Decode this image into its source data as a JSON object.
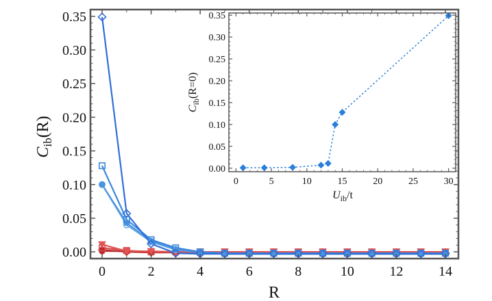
{
  "chart_data": [
    {
      "type": "line",
      "title": "",
      "xlabel": "R",
      "ylabel_main": "C",
      "ylabel_sub": "ib",
      "ylabel_tail": "(R)",
      "xlim": [
        0,
        14
      ],
      "ylim": [
        -0.01,
        0.36
      ],
      "xticks": [
        0,
        2,
        4,
        6,
        8,
        10,
        12,
        14
      ],
      "yticks": [
        0.0,
        0.05,
        0.1,
        0.15,
        0.2,
        0.25,
        0.3,
        0.35
      ],
      "xtick_labels": [
        "0",
        "2",
        "4",
        "6",
        "8",
        "10",
        "12",
        "14"
      ],
      "ytick_labels": [
        "0.00",
        "0.05",
        "0.10",
        "0.15",
        "0.20",
        "0.25",
        "0.30",
        "0.35"
      ],
      "grid": false,
      "x": [
        0,
        1,
        2,
        3,
        4,
        5,
        6,
        7,
        8,
        9,
        10,
        11,
        12,
        13,
        14
      ],
      "series": [
        {
          "name": "red-circle",
          "color": "#cc3333",
          "marker": "circle",
          "values": [
            0.001,
            0.001,
            0.0,
            -0.001,
            -0.001,
            -0.001,
            -0.001,
            -0.001,
            -0.001,
            -0.001,
            -0.001,
            -0.001,
            -0.001,
            -0.001,
            -0.001
          ]
        },
        {
          "name": "red-diamond",
          "color": "#b82828",
          "marker": "diamond",
          "values": [
            0.003,
            0.0,
            -0.001,
            -0.001,
            -0.001,
            -0.001,
            -0.001,
            -0.001,
            -0.001,
            -0.001,
            -0.001,
            -0.001,
            -0.001,
            -0.001,
            -0.001
          ]
        },
        {
          "name": "red-square",
          "color": "#d94a4a",
          "marker": "square",
          "values": [
            0.006,
            0.002,
            0.0,
            0.0,
            0.0,
            0.0,
            0.0,
            0.0,
            0.0,
            0.0,
            0.0,
            0.0,
            0.0,
            0.0,
            0.0
          ]
        },
        {
          "name": "red-triangle",
          "color": "#e05555",
          "marker": "triangle-down",
          "values": [
            0.011,
            0.001,
            0.001,
            0.0,
            0.0,
            0.0,
            0.0,
            0.0,
            0.0,
            0.0,
            0.0,
            0.0,
            0.0,
            0.0,
            0.0
          ]
        },
        {
          "name": "light-blue-circle",
          "color": "#6aaee8",
          "marker": "circle",
          "values": [
            0.1,
            0.04,
            0.015,
            0.003,
            -0.001,
            -0.003,
            -0.003,
            -0.003,
            -0.003,
            -0.003,
            -0.003,
            -0.003,
            -0.003,
            -0.003,
            -0.003
          ]
        },
        {
          "name": "mid-blue-circle",
          "color": "#4c93e0",
          "marker": "circle",
          "values": [
            0.1,
            0.043,
            0.016,
            0.004,
            -0.001,
            -0.003,
            -0.003,
            -0.003,
            -0.003,
            -0.003,
            -0.003,
            -0.003,
            -0.003,
            -0.003,
            -0.003
          ]
        },
        {
          "name": "blue-square",
          "color": "#3a86dc",
          "marker": "square",
          "values": [
            0.128,
            0.048,
            0.018,
            0.006,
            0.0,
            -0.002,
            -0.002,
            -0.002,
            -0.002,
            -0.002,
            -0.002,
            -0.002,
            -0.002,
            -0.002,
            -0.002
          ]
        },
        {
          "name": "dark-blue-diamond",
          "color": "#2f6fd6",
          "marker": "diamond",
          "values": [
            0.349,
            0.057,
            0.012,
            -0.002,
            -0.003,
            -0.003,
            -0.003,
            -0.003,
            -0.003,
            -0.003,
            -0.003,
            -0.003,
            -0.003,
            -0.003,
            -0.003
          ]
        }
      ]
    },
    {
      "type": "scatter",
      "title": "",
      "xlabel_main": "U",
      "xlabel_sub": "ib",
      "xlabel_tail": "/t",
      "ylabel_main": "C",
      "ylabel_sub": "ib",
      "ylabel_tail": "(R=0)",
      "xlim": [
        -1,
        31
      ],
      "ylim": [
        -0.008,
        0.355
      ],
      "xticks": [
        0,
        5,
        10,
        15,
        20,
        25,
        30
      ],
      "yticks": [
        0.0,
        0.05,
        0.1,
        0.15,
        0.2,
        0.25,
        0.3,
        0.35
      ],
      "xtick_labels": [
        "0",
        "5",
        "10",
        "15",
        "20",
        "25",
        "30"
      ],
      "ytick_labels": [
        "0.00",
        "0.05",
        "0.10",
        "0.15",
        "0.20",
        "0.25",
        "0.30",
        "0.35"
      ],
      "grid": false,
      "line_style": "dotted",
      "color": "#2a7fdc",
      "marker": "diamond",
      "x": [
        1,
        4,
        8,
        12,
        13,
        14,
        15,
        30
      ],
      "y": [
        0.001,
        0.001,
        0.002,
        0.007,
        0.011,
        0.1,
        0.128,
        0.349
      ]
    }
  ]
}
